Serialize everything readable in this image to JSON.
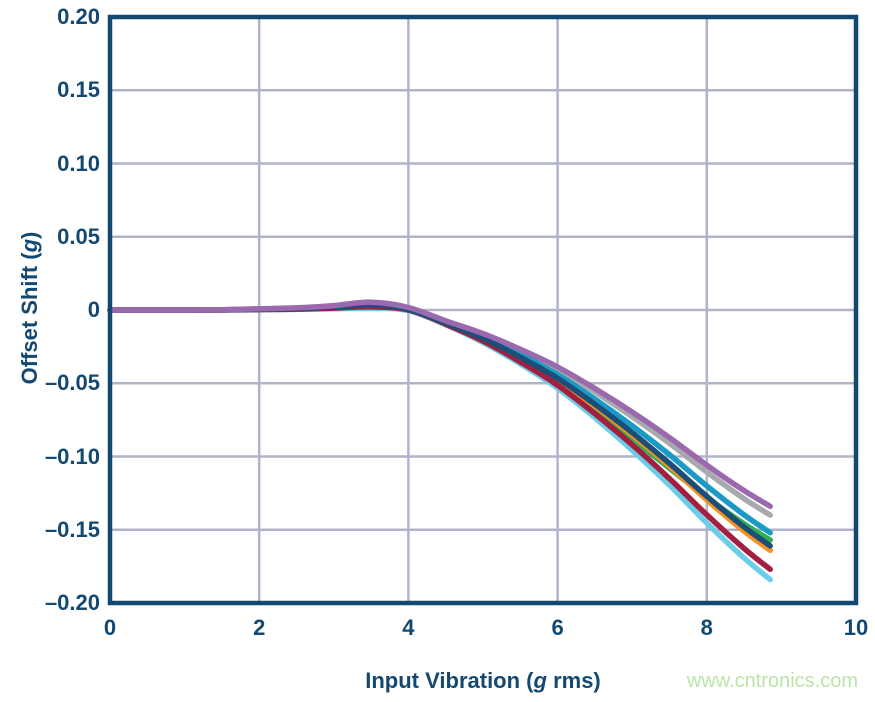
{
  "watermark": {
    "text": "www.cntronics.com",
    "color": "#b9e6a5"
  },
  "axes": {
    "y_title": {
      "prefix": "Offset Shift (",
      "italic": "g",
      "suffix": ")"
    },
    "x_title": {
      "prefix": "Input Vibration (",
      "italic": "g",
      "suffix": " rms)"
    }
  },
  "colors": {
    "axis_frame": "#134871",
    "tick_text": "#134871",
    "gridline": "#b1b4c9",
    "background": "#ffffff"
  },
  "chart_data": {
    "type": "line",
    "title": "",
    "xlabel": "Input Vibration (g rms)",
    "ylabel": "Offset Shift (g)",
    "xlim": [
      0,
      10
    ],
    "ylim": [
      -0.2,
      0.2
    ],
    "grid": true,
    "legend": false,
    "x_ticks": [
      0,
      2,
      4,
      6,
      8,
      10
    ],
    "x_tick_labels": [
      "0",
      "2",
      "4",
      "6",
      "8",
      "10"
    ],
    "y_ticks": [
      0.2,
      0.15,
      0.1,
      0.05,
      0,
      -0.05,
      -0.1,
      -0.15,
      -0.2
    ],
    "y_tick_labels": [
      "0.20",
      "0.15",
      "0.10",
      "0.05",
      "0",
      "–0.05",
      "–0.10",
      "–0.15",
      "–0.20"
    ],
    "x": [
      0,
      0.5,
      1,
      1.5,
      2,
      2.5,
      3,
      3.5,
      4,
      4.5,
      5,
      5.5,
      6,
      6.5,
      7,
      7.5,
      8,
      8.5,
      8.85
    ],
    "series": [
      {
        "name": "gray",
        "color": "#a7a9ac",
        "values": [
          0,
          0,
          0,
          0.0002,
          0.0007,
          0.0013,
          0.0026,
          0.0046,
          0.0012,
          -0.0077,
          -0.0168,
          -0.028,
          -0.0406,
          -0.056,
          -0.0728,
          -0.091,
          -0.1106,
          -0.1288,
          -0.14
        ]
      },
      {
        "name": "teal",
        "color": "#1b9ac5",
        "values": [
          0,
          0,
          0,
          0.0001,
          0.0006,
          0.0011,
          0.0022,
          0.0039,
          0.0005,
          -0.0084,
          -0.0182,
          -0.0304,
          -0.0441,
          -0.0608,
          -0.079,
          -0.0988,
          -0.1201,
          -0.1398,
          -0.152
        ]
      },
      {
        "name": "green",
        "color": "#2fae52",
        "values": [
          0,
          0,
          0,
          0.0001,
          0.0005,
          0.0009,
          0.0018,
          0.0032,
          0.0,
          -0.0095,
          -0.021,
          -0.035,
          -0.05,
          -0.068,
          -0.088,
          -0.108,
          -0.128,
          -0.146,
          -0.157
        ]
      },
      {
        "name": "orange",
        "color": "#f6921e",
        "values": [
          0,
          0,
          0,
          0.0001,
          0.0005,
          0.0009,
          0.0018,
          0.0032,
          0.0002,
          -0.009,
          -0.0197,
          -0.0328,
          -0.0476,
          -0.0656,
          -0.0853,
          -0.1066,
          -0.1296,
          -0.1509,
          -0.164
        ]
      },
      {
        "name": "cyan",
        "color": "#6bcde7",
        "values": [
          0,
          0,
          0,
          0.0,
          0.0002,
          0.0004,
          0.0009,
          0.0014,
          -0.0004,
          -0.0101,
          -0.0221,
          -0.0368,
          -0.0534,
          -0.0736,
          -0.0957,
          -0.1196,
          -0.1454,
          -0.1693,
          -0.184
        ]
      },
      {
        "name": "crimson",
        "color": "#a31e3f",
        "values": [
          0,
          0,
          0,
          0.0,
          0.0003,
          0.0006,
          0.0013,
          0.0021,
          0.0,
          -0.0097,
          -0.0212,
          -0.0354,
          -0.0513,
          -0.0708,
          -0.092,
          -0.1151,
          -0.1398,
          -0.1628,
          -0.177
        ]
      },
      {
        "name": "navy",
        "color": "#1b4e79",
        "values": [
          0,
          0,
          0,
          0.0001,
          0.0005,
          0.001,
          0.002,
          0.0035,
          0.0004,
          -0.0089,
          -0.0193,
          -0.0322,
          -0.0467,
          -0.0644,
          -0.0837,
          -0.1047,
          -0.1272,
          -0.1481,
          -0.161
        ]
      },
      {
        "name": "purple",
        "color": "#9b69ae",
        "values": [
          0,
          0,
          0,
          0.0002,
          0.0008,
          0.0015,
          0.003,
          0.0053,
          0.0017,
          -0.0074,
          -0.0161,
          -0.0268,
          -0.0389,
          -0.0536,
          -0.0697,
          -0.0871,
          -0.1059,
          -0.1233,
          -0.134
        ]
      }
    ]
  }
}
